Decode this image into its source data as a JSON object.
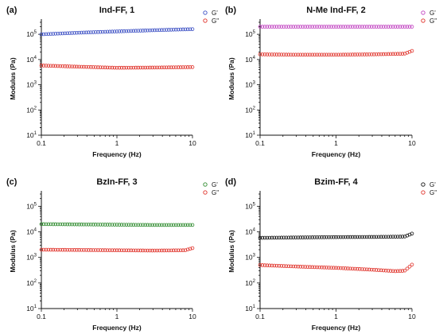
{
  "chart_data": [
    {
      "type": "scatter",
      "panel": "(a)",
      "title": "Ind-FF, 1",
      "xlabel": "Frequency (Hz)",
      "ylabel": "Modulus (Pa)",
      "x_scale": "log",
      "y_scale": "log",
      "xlim": [
        0.1,
        10
      ],
      "ylim": [
        10,
        300000
      ],
      "x_tick_labels": [
        "0.1",
        "1",
        "10"
      ],
      "y_tick_labels": [
        [
          "10",
          "1"
        ],
        [
          "10",
          "2"
        ],
        [
          "10",
          "3"
        ],
        [
          "10",
          "4"
        ],
        [
          "10",
          "5"
        ]
      ],
      "grid": false,
      "legend_position": "top-right",
      "series": [
        {
          "name": "G'",
          "color": "#3b4fc4",
          "x": [
            0.1,
            0.3,
            1,
            3,
            10
          ],
          "values": [
            100000,
            115000,
            130000,
            145000,
            160000
          ]
        },
        {
          "name": "G\"",
          "color": "#e0322a",
          "x": [
            0.1,
            0.3,
            1,
            3,
            10
          ],
          "values": [
            5800,
            5200,
            4700,
            4800,
            5000
          ]
        }
      ]
    },
    {
      "type": "scatter",
      "panel": "(b)",
      "title": "N-Me Ind-FF, 2",
      "xlabel": "Frequency (Hz)",
      "ylabel": "Modulus (Pa)",
      "x_scale": "log",
      "y_scale": "log",
      "xlim": [
        0.1,
        10
      ],
      "ylim": [
        10,
        300000
      ],
      "x_tick_labels": [
        "0.1",
        "1",
        "10"
      ],
      "y_tick_labels": [
        [
          "10",
          "1"
        ],
        [
          "10",
          "2"
        ],
        [
          "10",
          "3"
        ],
        [
          "10",
          "4"
        ],
        [
          "10",
          "5"
        ]
      ],
      "grid": false,
      "legend_position": "top-right",
      "series": [
        {
          "name": "G'",
          "color": "#c040c0",
          "x": [
            0.1,
            0.3,
            1,
            3,
            10
          ],
          "values": [
            200000,
            200000,
            200000,
            200000,
            200000
          ]
        },
        {
          "name": "G\"",
          "color": "#e0322a",
          "x": [
            0.1,
            0.3,
            1,
            3,
            8,
            10
          ],
          "values": [
            16000,
            15500,
            15500,
            16000,
            17000,
            22000
          ]
        }
      ]
    },
    {
      "type": "scatter",
      "panel": "(c)",
      "title": "BzIn-FF, 3",
      "xlabel": "Frequency (Hz)",
      "ylabel": "Modulus (Pa)",
      "x_scale": "log",
      "y_scale": "log",
      "xlim": [
        0.1,
        10
      ],
      "ylim": [
        10,
        300000
      ],
      "x_tick_labels": [
        "0.1",
        "1",
        "10"
      ],
      "y_tick_labels": [
        [
          "10",
          "1"
        ],
        [
          "10",
          "2"
        ],
        [
          "10",
          "3"
        ],
        [
          "10",
          "4"
        ],
        [
          "10",
          "5"
        ]
      ],
      "grid": false,
      "legend_position": "top-right",
      "series": [
        {
          "name": "G'",
          "color": "#2e8b2e",
          "x": [
            0.1,
            0.3,
            1,
            3,
            10
          ],
          "values": [
            20000,
            19500,
            19000,
            18500,
            18500
          ]
        },
        {
          "name": "G\"",
          "color": "#e0322a",
          "x": [
            0.1,
            0.3,
            1,
            3,
            8,
            10
          ],
          "values": [
            2000,
            1950,
            1900,
            1850,
            1900,
            2300
          ]
        }
      ]
    },
    {
      "type": "scatter",
      "panel": "(d)",
      "title": "Bzim-FF, 4",
      "xlabel": "Frequency (Hz)",
      "ylabel": "Modulus (Pa)",
      "x_scale": "log",
      "y_scale": "log",
      "xlim": [
        0.1,
        10
      ],
      "ylim": [
        10,
        300000
      ],
      "x_tick_labels": [
        "0.1",
        "1",
        "10"
      ],
      "y_tick_labels": [
        [
          "10",
          "1"
        ],
        [
          "10",
          "2"
        ],
        [
          "10",
          "3"
        ],
        [
          "10",
          "4"
        ],
        [
          "10",
          "5"
        ]
      ],
      "grid": false,
      "legend_position": "top-right",
      "series": [
        {
          "name": "G'",
          "color": "#111111",
          "x": [
            0.1,
            0.3,
            1,
            3,
            8,
            10
          ],
          "values": [
            5800,
            6000,
            6200,
            6300,
            6500,
            8500
          ]
        },
        {
          "name": "G\"",
          "color": "#e0322a",
          "x": [
            0.1,
            0.3,
            1,
            3,
            6,
            8,
            10
          ],
          "values": [
            500,
            440,
            390,
            330,
            290,
            300,
            520
          ]
        }
      ]
    }
  ]
}
